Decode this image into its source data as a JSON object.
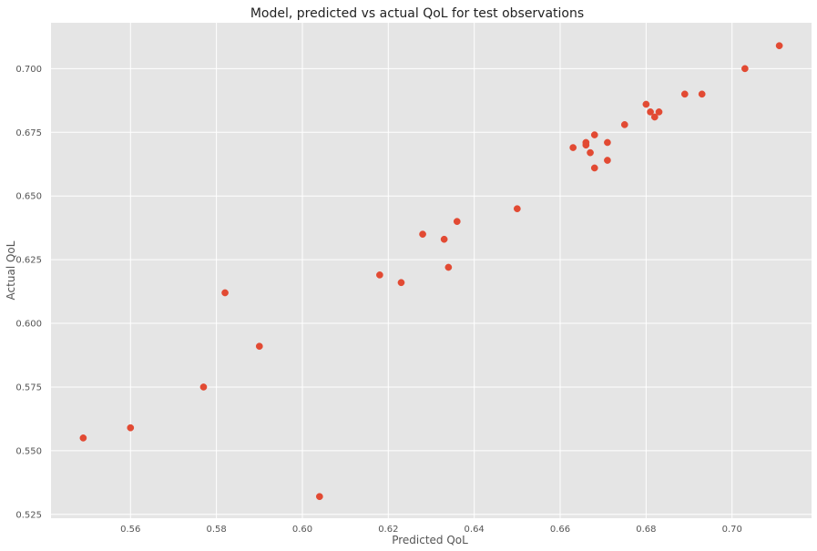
{
  "chart_data": {
    "type": "scatter",
    "title": "Model, predicted vs actual QoL for test observations",
    "xlabel": "Predicted QoL",
    "ylabel": "Actual QoL",
    "xlim": [
      0.5415,
      0.7185
    ],
    "ylim": [
      0.5235,
      0.718
    ],
    "xticks": [
      0.56,
      0.58,
      0.6,
      0.62,
      0.64,
      0.66,
      0.68,
      0.7
    ],
    "xtick_labels": [
      "0.56",
      "0.58",
      "0.60",
      "0.62",
      "0.64",
      "0.66",
      "0.68",
      "0.70"
    ],
    "yticks": [
      0.525,
      0.55,
      0.575,
      0.6,
      0.625,
      0.65,
      0.675,
      0.7
    ],
    "ytick_labels": [
      "0.525",
      "0.550",
      "0.575",
      "0.600",
      "0.625",
      "0.650",
      "0.675",
      "0.700"
    ],
    "grid": true,
    "colors": {
      "background": "#e5e5e5",
      "grid": "#ffffff",
      "marker": "#e24a33"
    },
    "points": [
      {
        "x": 0.549,
        "y": 0.555
      },
      {
        "x": 0.56,
        "y": 0.559
      },
      {
        "x": 0.577,
        "y": 0.575
      },
      {
        "x": 0.582,
        "y": 0.612
      },
      {
        "x": 0.59,
        "y": 0.591
      },
      {
        "x": 0.604,
        "y": 0.532
      },
      {
        "x": 0.618,
        "y": 0.619
      },
      {
        "x": 0.623,
        "y": 0.616
      },
      {
        "x": 0.628,
        "y": 0.635
      },
      {
        "x": 0.633,
        "y": 0.633
      },
      {
        "x": 0.634,
        "y": 0.622
      },
      {
        "x": 0.636,
        "y": 0.64
      },
      {
        "x": 0.65,
        "y": 0.645
      },
      {
        "x": 0.663,
        "y": 0.669
      },
      {
        "x": 0.666,
        "y": 0.67
      },
      {
        "x": 0.666,
        "y": 0.671
      },
      {
        "x": 0.667,
        "y": 0.667
      },
      {
        "x": 0.668,
        "y": 0.674
      },
      {
        "x": 0.668,
        "y": 0.661
      },
      {
        "x": 0.671,
        "y": 0.671
      },
      {
        "x": 0.671,
        "y": 0.664
      },
      {
        "x": 0.675,
        "y": 0.678
      },
      {
        "x": 0.68,
        "y": 0.686
      },
      {
        "x": 0.681,
        "y": 0.683
      },
      {
        "x": 0.682,
        "y": 0.681
      },
      {
        "x": 0.683,
        "y": 0.683
      },
      {
        "x": 0.689,
        "y": 0.69
      },
      {
        "x": 0.693,
        "y": 0.69
      },
      {
        "x": 0.703,
        "y": 0.7
      },
      {
        "x": 0.711,
        "y": 0.709
      }
    ]
  }
}
